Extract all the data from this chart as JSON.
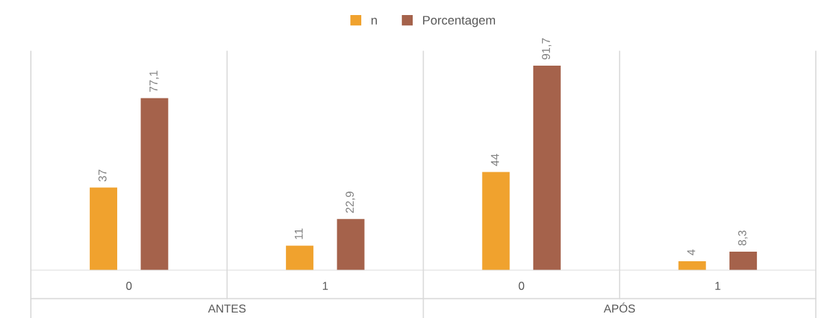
{
  "chart_data": {
    "type": "bar",
    "categories": [
      "0",
      "1",
      "0",
      "1"
    ],
    "series": [
      {
        "name": "n",
        "color": "#f0a22e",
        "values": [
          37,
          11,
          44,
          4
        ],
        "value_labels": [
          "37",
          "11",
          "44",
          "4"
        ]
      },
      {
        "name": "Porcentagem",
        "color": "#a5624b",
        "values": [
          77.1,
          22.9,
          91.7,
          8.3
        ],
        "value_labels": [
          "77,1",
          "22,9",
          "91,7",
          "8,3"
        ]
      }
    ],
    "annotations": [
      "ANTES",
      "APÓS"
    ],
    "grid": "x",
    "legend": "top"
  }
}
